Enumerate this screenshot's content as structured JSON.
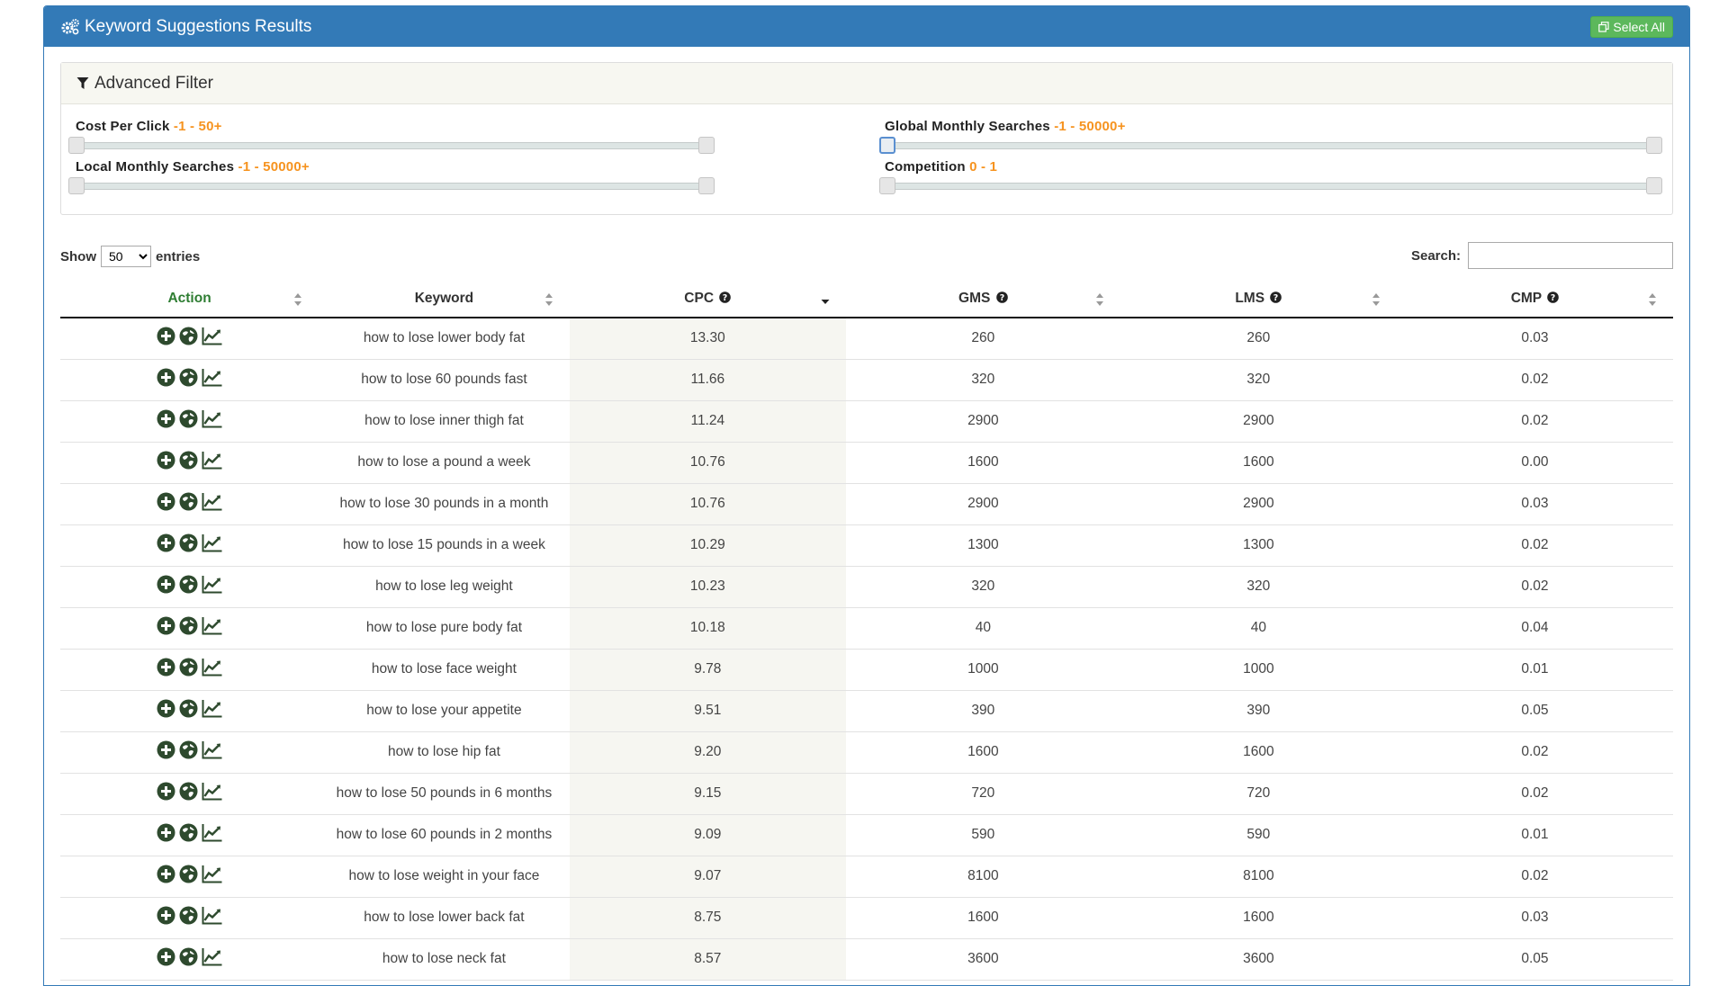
{
  "header": {
    "title": "Keyword Suggestions Results",
    "select_all_label": "Select All"
  },
  "filter": {
    "title": "Advanced Filter",
    "cpc": {
      "label": "Cost Per Click",
      "range": "-1 - 50+"
    },
    "gms": {
      "label": "Global Monthly Searches",
      "range": "-1 - 50000+"
    },
    "lms": {
      "label": "Local Monthly Searches",
      "range": "-1 - 50000+"
    },
    "cmp": {
      "label": "Competition",
      "range": "0 - 1"
    }
  },
  "controls": {
    "show_label": "Show",
    "entries_value": "50",
    "entries_label": "entries",
    "search_label": "Search:",
    "search_value": ""
  },
  "columns": {
    "action": "Action",
    "keyword": "Keyword",
    "cpc": "CPC",
    "gms": "GMS",
    "lms": "LMS",
    "cmp": "CMP"
  },
  "rows": [
    {
      "keyword": "how to lose lower body fat",
      "cpc": "13.30",
      "gms": "260",
      "lms": "260",
      "cmp": "0.03"
    },
    {
      "keyword": "how to lose 60 pounds fast",
      "cpc": "11.66",
      "gms": "320",
      "lms": "320",
      "cmp": "0.02"
    },
    {
      "keyword": "how to lose inner thigh fat",
      "cpc": "11.24",
      "gms": "2900",
      "lms": "2900",
      "cmp": "0.02"
    },
    {
      "keyword": "how to lose a pound a week",
      "cpc": "10.76",
      "gms": "1600",
      "lms": "1600",
      "cmp": "0.00"
    },
    {
      "keyword": "how to lose 30 pounds in a month",
      "cpc": "10.76",
      "gms": "2900",
      "lms": "2900",
      "cmp": "0.03"
    },
    {
      "keyword": "how to lose 15 pounds in a week",
      "cpc": "10.29",
      "gms": "1300",
      "lms": "1300",
      "cmp": "0.02"
    },
    {
      "keyword": "how to lose leg weight",
      "cpc": "10.23",
      "gms": "320",
      "lms": "320",
      "cmp": "0.02"
    },
    {
      "keyword": "how to lose pure body fat",
      "cpc": "10.18",
      "gms": "40",
      "lms": "40",
      "cmp": "0.04"
    },
    {
      "keyword": "how to lose face weight",
      "cpc": "9.78",
      "gms": "1000",
      "lms": "1000",
      "cmp": "0.01"
    },
    {
      "keyword": "how to lose your appetite",
      "cpc": "9.51",
      "gms": "390",
      "lms": "390",
      "cmp": "0.05"
    },
    {
      "keyword": "how to lose hip fat",
      "cpc": "9.20",
      "gms": "1600",
      "lms": "1600",
      "cmp": "0.02"
    },
    {
      "keyword": "how to lose 50 pounds in 6 months",
      "cpc": "9.15",
      "gms": "720",
      "lms": "720",
      "cmp": "0.02"
    },
    {
      "keyword": "how to lose 60 pounds in 2 months",
      "cpc": "9.09",
      "gms": "590",
      "lms": "590",
      "cmp": "0.01"
    },
    {
      "keyword": "how to lose weight in your face",
      "cpc": "9.07",
      "gms": "8100",
      "lms": "8100",
      "cmp": "0.02"
    },
    {
      "keyword": "how to lose lower back fat",
      "cpc": "8.75",
      "gms": "1600",
      "lms": "1600",
      "cmp": "0.03"
    },
    {
      "keyword": "how to lose neck fat",
      "cpc": "8.57",
      "gms": "3600",
      "lms": "3600",
      "cmp": "0.05"
    }
  ],
  "colors": {
    "primary": "#337ab7",
    "success": "#5cb85c",
    "range_text": "#f6931f",
    "action_icon": "#2e4a2e"
  }
}
